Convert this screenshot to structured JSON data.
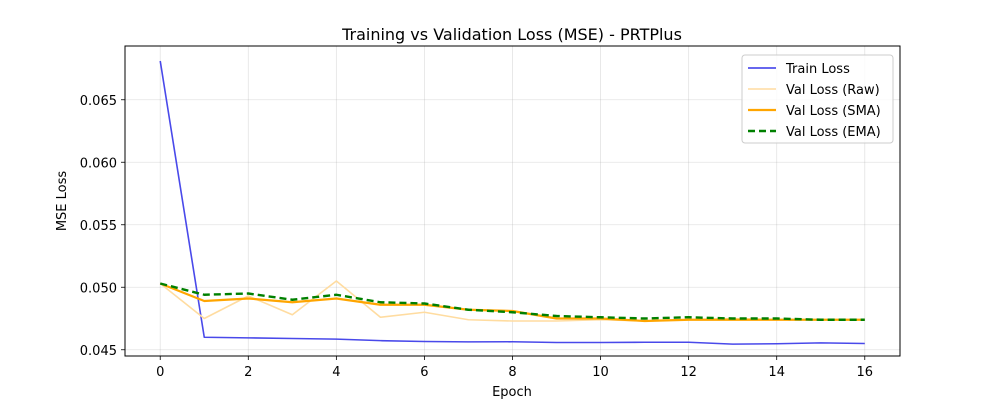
{
  "chart_data": {
    "type": "line",
    "title": "Training vs Validation Loss (MSE) - PRTPlus",
    "xlabel": "Epoch",
    "ylabel": "MSE Loss",
    "xlim": [
      -0.8,
      16.8
    ],
    "ylim": [
      0.0445,
      0.0693
    ],
    "xticks": [
      0,
      2,
      4,
      6,
      8,
      10,
      12,
      14,
      16
    ],
    "yticks": [
      0.045,
      0.05,
      0.055,
      0.06,
      0.065
    ],
    "ytick_labels": [
      "0.045",
      "0.050",
      "0.055",
      "0.060",
      "0.065"
    ],
    "grid": true,
    "legend_position": "top-right",
    "x": [
      0,
      1,
      2,
      3,
      4,
      5,
      6,
      7,
      8,
      9,
      10,
      11,
      12,
      13,
      14,
      15,
      16
    ],
    "series": [
      {
        "name": "Train Loss",
        "color": "#3535e8",
        "style": "solid",
        "values": [
          0.0681,
          0.046,
          0.04595,
          0.0459,
          0.04585,
          0.04573,
          0.04566,
          0.04563,
          0.04564,
          0.04558,
          0.04558,
          0.0456,
          0.0456,
          0.04545,
          0.04548,
          0.04555,
          0.0455
        ]
      },
      {
        "name": "Val Loss (Raw)",
        "color": "#ffdca0",
        "style": "solid",
        "values": [
          0.0503,
          0.0475,
          0.0493,
          0.0478,
          0.0505,
          0.0476,
          0.048,
          0.0474,
          0.0473,
          0.0473,
          0.0474,
          0.0473,
          0.0474,
          0.0475,
          0.0474,
          0.0474,
          0.0474
        ]
      },
      {
        "name": "Val Loss (SMA)",
        "color": "#ffa500",
        "style": "solid",
        "values": [
          0.0503,
          0.0489,
          0.0491,
          0.0488,
          0.0491,
          0.0486,
          0.0486,
          0.0482,
          0.0481,
          0.0475,
          0.0475,
          0.0473,
          0.0474,
          0.0474,
          0.0474,
          0.0474,
          0.0474
        ]
      },
      {
        "name": "Val Loss (EMA)",
        "color": "#008000",
        "style": "dashed",
        "values": [
          0.0503,
          0.0494,
          0.0495,
          0.049,
          0.0494,
          0.0488,
          0.0487,
          0.0482,
          0.048,
          0.0477,
          0.0476,
          0.0475,
          0.0476,
          0.0475,
          0.0475,
          0.0474,
          0.0474
        ]
      }
    ]
  }
}
